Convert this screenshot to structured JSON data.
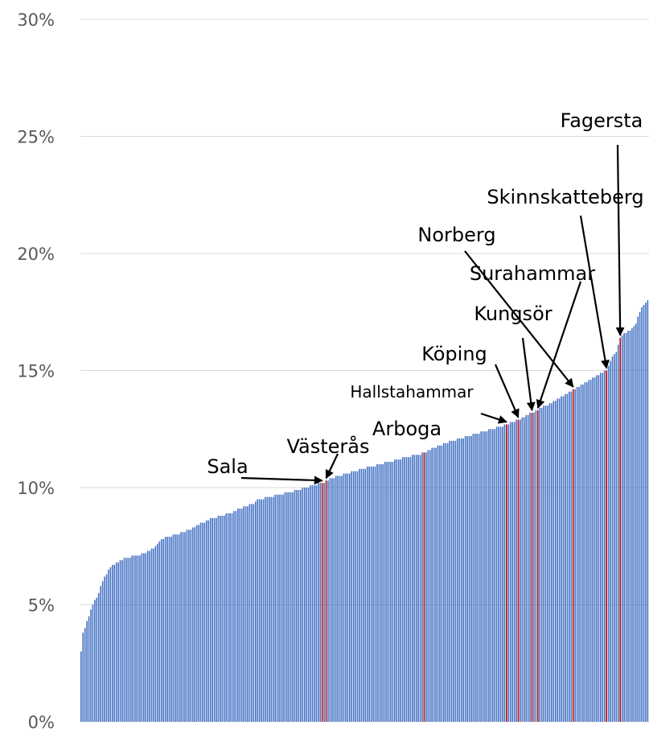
{
  "chart_data": {
    "type": "bar",
    "color": "#4472c4",
    "highlight_color": "#c00000",
    "ylim": [
      0,
      30
    ],
    "yticks": [
      {
        "value": 0,
        "label": "0%"
      },
      {
        "value": 5,
        "label": "5%"
      },
      {
        "value": 10,
        "label": "10%"
      },
      {
        "value": 15,
        "label": "15%"
      },
      {
        "value": 20,
        "label": "20%"
      },
      {
        "value": 25,
        "label": "25%"
      },
      {
        "value": 30,
        "label": "30%"
      }
    ],
    "grid": true,
    "categories": [
      null,
      null,
      null,
      null,
      null,
      null,
      null,
      null,
      null,
      null,
      null,
      null,
      null,
      null,
      null,
      null,
      null,
      null,
      null,
      null,
      null,
      null,
      null,
      null,
      null,
      null,
      null,
      null,
      null,
      null,
      null,
      null,
      null,
      null,
      null,
      null,
      null,
      null,
      null,
      null,
      null,
      null,
      null,
      null,
      null,
      null,
      null,
      null,
      null,
      null,
      null,
      null,
      null,
      null,
      null,
      null,
      null,
      null,
      null,
      null,
      null,
      null,
      null,
      null,
      null,
      null,
      null,
      null,
      null,
      null,
      null,
      null,
      null,
      null,
      null,
      null,
      null,
      null,
      null,
      null,
      null,
      null,
      null,
      null,
      null,
      null,
      null,
      null,
      null,
      null,
      null,
      null,
      null,
      null,
      null,
      null,
      null,
      null,
      null,
      null,
      null,
      null,
      null,
      null,
      null,
      null,
      null,
      null,
      null,
      null,
      null,
      null,
      null,
      null,
      null,
      null,
      null,
      null,
      null,
      null,
      null,
      null,
      null,
      "Sala",
      null,
      "Västerås",
      null,
      null,
      null,
      null,
      null,
      null,
      null,
      null,
      null,
      null,
      null,
      null,
      null,
      null,
      null,
      null,
      null,
      null,
      null,
      null,
      null,
      null,
      null,
      null,
      null,
      null,
      null,
      null,
      null,
      null,
      null,
      null,
      null,
      null,
      null,
      null,
      null,
      null,
      null,
      null,
      null,
      null,
      null,
      null,
      null,
      null,
      null,
      null,
      null,
      "Arboga",
      null,
      null,
      null,
      null,
      null,
      null,
      null,
      null,
      null,
      null,
      null,
      null,
      null,
      null,
      null,
      null,
      null,
      null,
      null,
      null,
      null,
      null,
      null,
      null,
      null,
      null,
      null,
      null,
      null,
      null,
      null,
      null,
      null,
      null,
      null,
      null,
      null,
      null,
      null,
      null,
      null,
      "Hallstahammar",
      null,
      null,
      null,
      null,
      null,
      "Köping",
      null,
      null,
      null,
      null,
      null,
      null,
      "Kungsör",
      null,
      null,
      "Surahammar",
      null,
      null,
      null,
      null,
      null,
      null,
      null,
      null,
      null,
      null,
      null,
      null,
      null,
      null,
      null,
      null,
      null,
      "Norberg",
      null,
      null,
      null,
      null,
      null,
      null,
      null,
      null,
      null,
      null,
      null,
      null,
      null,
      null,
      null,
      null,
      "Skinnskatteberg",
      null,
      null,
      null,
      null,
      null,
      null,
      "Fagersta",
      null,
      null,
      null,
      null,
      null,
      null,
      null,
      null,
      null,
      null,
      null,
      null,
      null,
      null
    ],
    "values": [
      3.0,
      3.8,
      4.0,
      4.3,
      4.5,
      4.8,
      5.0,
      5.2,
      5.3,
      5.5,
      5.8,
      6.0,
      6.2,
      6.3,
      6.5,
      6.6,
      6.7,
      6.7,
      6.8,
      6.8,
      6.9,
      6.9,
      7.0,
      7.0,
      7.0,
      7.0,
      7.1,
      7.1,
      7.1,
      7.1,
      7.1,
      7.2,
      7.2,
      7.2,
      7.3,
      7.3,
      7.4,
      7.4,
      7.5,
      7.6,
      7.7,
      7.8,
      7.8,
      7.9,
      7.9,
      7.9,
      7.9,
      8.0,
      8.0,
      8.0,
      8.0,
      8.1,
      8.1,
      8.1,
      8.2,
      8.2,
      8.2,
      8.3,
      8.3,
      8.4,
      8.4,
      8.5,
      8.5,
      8.5,
      8.6,
      8.6,
      8.7,
      8.7,
      8.7,
      8.7,
      8.8,
      8.8,
      8.8,
      8.8,
      8.9,
      8.9,
      8.9,
      8.9,
      9.0,
      9.0,
      9.1,
      9.1,
      9.1,
      9.2,
      9.2,
      9.2,
      9.3,
      9.3,
      9.3,
      9.4,
      9.5,
      9.5,
      9.5,
      9.5,
      9.6,
      9.6,
      9.6,
      9.6,
      9.6,
      9.7,
      9.7,
      9.7,
      9.7,
      9.7,
      9.8,
      9.8,
      9.8,
      9.8,
      9.8,
      9.9,
      9.9,
      9.9,
      9.9,
      10.0,
      10.0,
      10.0,
      10.0,
      10.1,
      10.1,
      10.1,
      10.1,
      10.2,
      10.2,
      10.2,
      10.2,
      10.3,
      10.3,
      10.4,
      10.4,
      10.4,
      10.5,
      10.5,
      10.5,
      10.5,
      10.6,
      10.6,
      10.6,
      10.6,
      10.7,
      10.7,
      10.7,
      10.7,
      10.8,
      10.8,
      10.8,
      10.8,
      10.9,
      10.9,
      10.9,
      10.9,
      10.9,
      11.0,
      11.0,
      11.0,
      11.0,
      11.1,
      11.1,
      11.1,
      11.1,
      11.1,
      11.2,
      11.2,
      11.2,
      11.2,
      11.3,
      11.3,
      11.3,
      11.3,
      11.3,
      11.4,
      11.4,
      11.4,
      11.4,
      11.4,
      11.5,
      11.5,
      11.5,
      11.6,
      11.6,
      11.7,
      11.7,
      11.7,
      11.8,
      11.8,
      11.8,
      11.9,
      11.9,
      11.9,
      12.0,
      12.0,
      12.0,
      12.0,
      12.1,
      12.1,
      12.1,
      12.1,
      12.2,
      12.2,
      12.2,
      12.2,
      12.3,
      12.3,
      12.3,
      12.3,
      12.4,
      12.4,
      12.4,
      12.4,
      12.5,
      12.5,
      12.5,
      12.5,
      12.6,
      12.6,
      12.6,
      12.6,
      12.7,
      12.7,
      12.7,
      12.8,
      12.8,
      12.8,
      12.9,
      12.9,
      12.9,
      13.0,
      13.0,
      13.1,
      13.1,
      13.2,
      13.2,
      13.2,
      13.3,
      13.3,
      13.4,
      13.4,
      13.5,
      13.5,
      13.5,
      13.6,
      13.6,
      13.7,
      13.7,
      13.8,
      13.8,
      13.9,
      13.9,
      14.0,
      14.0,
      14.1,
      14.1,
      14.2,
      14.2,
      14.3,
      14.3,
      14.4,
      14.4,
      14.5,
      14.5,
      14.6,
      14.6,
      14.7,
      14.7,
      14.8,
      14.8,
      14.9,
      14.9,
      15.0,
      15.0,
      15.2,
      15.4,
      15.6,
      15.7,
      15.8,
      16.1,
      16.4,
      16.5,
      16.6,
      16.6,
      16.7,
      16.7,
      16.8,
      16.9,
      17.0,
      17.3,
      17.5,
      17.7,
      17.8,
      17.9,
      18.0
    ]
  }
}
